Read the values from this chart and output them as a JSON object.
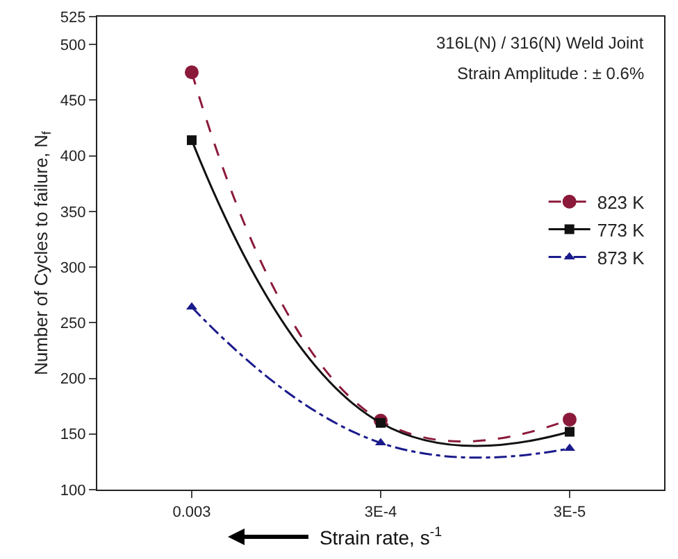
{
  "chart_data": {
    "type": "line",
    "xlabel": "Strain rate, s$^{-1}$",
    "ylabel": "Number of Cycles to failure, N$_{f}$",
    "annotations": [
      "316L(N) / 316(N) Weld Joint",
      "Strain Amplitude : ± 0.6%"
    ],
    "categories": [
      "0.003",
      "3E-4",
      "3E-5"
    ],
    "series": [
      {
        "name": "823 K",
        "color": "#8b1a3a",
        "values": [
          475,
          162,
          163
        ],
        "marker": "circle",
        "line_style": "dashed"
      },
      {
        "name": "773 K",
        "color": "#111111",
        "values": [
          414,
          160,
          152
        ],
        "marker": "square",
        "line_style": "solid"
      },
      {
        "name": "873 K",
        "color": "#1a1a8c",
        "values": [
          264,
          142,
          137
        ],
        "marker": "triangle",
        "line_style": "dashdot"
      }
    ],
    "ylim": [
      100,
      525
    ],
    "yticks": [
      100,
      150,
      200,
      250,
      300,
      350,
      400,
      450,
      500,
      525
    ],
    "grid": false,
    "legend": "right"
  }
}
